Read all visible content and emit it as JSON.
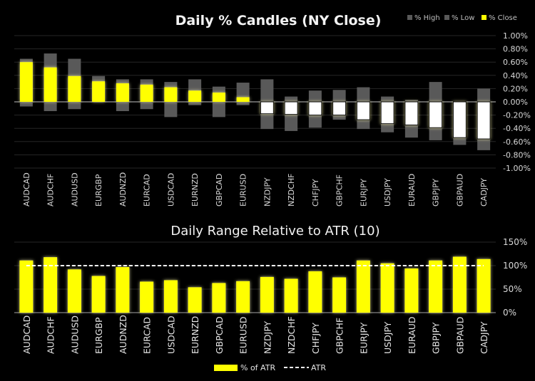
{
  "chart_data": [
    {
      "type": "bar",
      "subtype": "candle",
      "title": "Daily % Candles (NY Close)",
      "categories": [
        "AUDCAD",
        "AUDCHF",
        "AUDUSD",
        "EURGBP",
        "AUDNZD",
        "EURCAD",
        "USDCAD",
        "EURNZD",
        "GBPCAD",
        "EURUSD",
        "NZDJPY",
        "NZDCHF",
        "CHFJPY",
        "GBPCHF",
        "EURJPY",
        "USDJPY",
        "EURAUD",
        "GBPJPY",
        "GBPAUD",
        "CADJPY"
      ],
      "series": [
        {
          "name": "% High",
          "values": [
            0.65,
            0.73,
            0.65,
            0.39,
            0.34,
            0.34,
            0.3,
            0.34,
            0.23,
            0.29,
            0.34,
            0.08,
            0.17,
            0.18,
            0.22,
            0.08,
            0.03,
            0.3,
            0.0,
            0.2
          ]
        },
        {
          "name": "% Low",
          "values": [
            -0.07,
            -0.14,
            -0.11,
            -0.01,
            -0.14,
            -0.11,
            -0.23,
            -0.05,
            -0.23,
            -0.05,
            -0.41,
            -0.44,
            -0.39,
            -0.27,
            -0.41,
            -0.46,
            -0.54,
            -0.58,
            -0.65,
            -0.73
          ]
        },
        {
          "name": "% Close",
          "values": [
            0.6,
            0.52,
            0.39,
            0.31,
            0.28,
            0.26,
            0.22,
            0.17,
            0.14,
            0.07,
            -0.18,
            -0.19,
            -0.2,
            -0.2,
            -0.27,
            -0.33,
            -0.35,
            -0.39,
            -0.54,
            -0.56
          ]
        }
      ],
      "ylim": [
        -1.0,
        1.0
      ],
      "yticks": [
        "1.00%",
        "0.80%",
        "0.60%",
        "0.40%",
        "0.20%",
        "0.00%",
        "-0.20%",
        "-0.40%",
        "-0.60%",
        "-0.80%",
        "-1.00%"
      ],
      "ytick_values": [
        1.0,
        0.8,
        0.6,
        0.4,
        0.2,
        0.0,
        -0.2,
        -0.4,
        -0.6,
        -0.8,
        -1.0
      ],
      "legend": "top-right",
      "grid": true,
      "colors": {
        "high_low": "#595959",
        "close_up": "#ffff00",
        "close_down": "#ffffff"
      }
    },
    {
      "type": "bar",
      "title": "Daily Range Relative to ATR (10)",
      "categories": [
        "AUDCAD",
        "AUDCHF",
        "AUDUSD",
        "EURGBP",
        "AUDNZD",
        "EURCAD",
        "USDCAD",
        "EURNZD",
        "GBPCAD",
        "EURUSD",
        "NZDJPY",
        "NZDCHF",
        "CHFJPY",
        "GBPCHF",
        "EURJPY",
        "USDJPY",
        "EURAUD",
        "GBPJPY",
        "GBPAUD",
        "CADJPY"
      ],
      "series": [
        {
          "name": "% of ATR",
          "values": [
            111,
            118,
            92,
            78,
            97,
            66,
            69,
            54,
            63,
            67,
            76,
            72,
            88,
            75,
            111,
            105,
            94,
            111,
            119,
            114
          ]
        },
        {
          "name": "ATR",
          "values": [
            100,
            100,
            100,
            100,
            100,
            100,
            100,
            100,
            100,
            100,
            100,
            100,
            100,
            100,
            100,
            100,
            100,
            100,
            100,
            100
          ]
        }
      ],
      "ylim": [
        0,
        150
      ],
      "yticks": [
        "150%",
        "100%",
        "50%",
        "0%"
      ],
      "ytick_values": [
        150,
        100,
        50,
        0
      ],
      "legend": "bottom",
      "grid": true,
      "colors": {
        "bar": "#ffff00",
        "atr_line": "#ffffff"
      }
    }
  ]
}
